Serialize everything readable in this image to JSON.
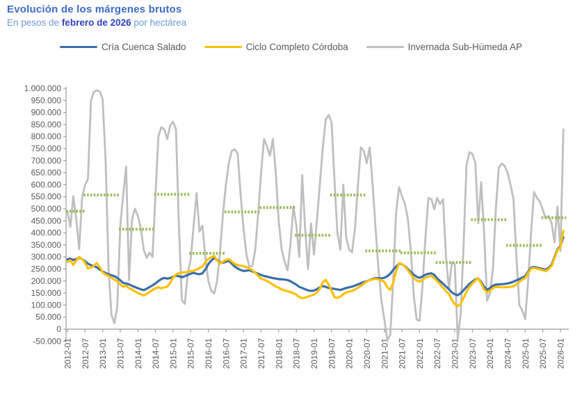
{
  "header": {
    "title": "Evolución de los márgenes brutos",
    "subtitle_prefix": "En pesos de ",
    "subtitle_bold": "febrero de 2026",
    "subtitle_suffix": " por hectárea"
  },
  "legend": {
    "items": [
      {
        "label": "Cría Cuenca Salado",
        "color": "#3A6EA8"
      },
      {
        "label": "Ciclo Completo Córdoba",
        "color": "#FFC000"
      },
      {
        "label": "Invernada Sub-Húmeda AP",
        "color": "#BFBFBF"
      }
    ]
  },
  "colors": {
    "title_blue": "#3B6CC0",
    "subtitle_blue": "#6E9CD4",
    "subtitle_bold_blue": "#2F3FC0",
    "axis_text": "#595959",
    "axis_line": "#9B9B9B",
    "series_cria": "#3A6EA8",
    "series_ciclo": "#FFC000",
    "series_invernada": "#BFBFBF",
    "annual_segments_green": "#9BBB59"
  },
  "chart_data": {
    "type": "line",
    "title": "Evolución de los márgenes brutos",
    "subtitle": "En pesos de febrero de 2026 por hectárea",
    "x_start": "2012-01",
    "x_end": "2026-02",
    "frequency": "monthly",
    "ylim": [
      -50000,
      1000000
    ],
    "y_tick_step": 50000,
    "y_tick_format": "dot-thousands",
    "grid": false,
    "legend_position": "top",
    "x_tick_labels": [
      "2012-01",
      "2012-07",
      "2013-01",
      "2013-07",
      "2014-01",
      "2014-07",
      "2015-01",
      "2015-07",
      "2016-01",
      "2016-07",
      "2017-01",
      "2017-07",
      "2018-01",
      "2018-07",
      "2019-01",
      "2019-07",
      "2020-01",
      "2020-07",
      "2021-01",
      "2021-07",
      "2022-01",
      "2022-07",
      "2023-01",
      "2023-07",
      "2024-01",
      "2024-07",
      "2025-01",
      "2025-07",
      "2026-01"
    ],
    "series": [
      {
        "name": "Cría Cuenca Salado",
        "color": "#3A6EA8",
        "values_note": "approximate monthly values read from chart, pesos/ha",
        "values": [
          290000,
          293000,
          287000,
          291000,
          296000,
          291000,
          282000,
          272000,
          266000,
          262000,
          257000,
          247000,
          240000,
          233000,
          228000,
          224000,
          220000,
          213000,
          203000,
          192000,
          190000,
          186000,
          180000,
          175000,
          170000,
          166000,
          162000,
          168000,
          175000,
          182000,
          190000,
          200000,
          208000,
          213000,
          210000,
          212000,
          218000,
          222000,
          220000,
          216000,
          220000,
          226000,
          230000,
          234000,
          230000,
          228000,
          232000,
          248000,
          270000,
          285000,
          296000,
          288000,
          278000,
          276000,
          280000,
          284000,
          272000,
          260000,
          252000,
          246000,
          242000,
          243000,
          245000,
          240000,
          235000,
          230000,
          225000,
          221000,
          218000,
          215000,
          212000,
          210000,
          208000,
          207000,
          206000,
          204000,
          199000,
          192000,
          185000,
          176000,
          171000,
          166000,
          161000,
          159000,
          160000,
          166000,
          174000,
          179000,
          176000,
          171000,
          169000,
          167000,
          165000,
          163000,
          167000,
          171000,
          174000,
          177000,
          181000,
          186000,
          191000,
          196000,
          198000,
          204000,
          209000,
          212000,
          212000,
          211000,
          214000,
          220000,
          230000,
          246000,
          260000,
          272000,
          270000,
          262000,
          250000,
          238000,
          226000,
          218000,
          213000,
          219000,
          226000,
          230000,
          232000,
          226000,
          211000,
          200000,
          189000,
          177000,
          166000,
          153000,
          145000,
          141000,
          149000,
          162000,
          175000,
          188000,
          198000,
          206000,
          211000,
          196000,
          176000,
          163000,
          171000,
          181000,
          185000,
          186000,
          187000,
          188000,
          190000,
          193000,
          197000,
          203000,
          208000,
          214000,
          220000,
          238000,
          256000,
          258000,
          256000,
          253000,
          250000,
          247000,
          255000,
          268000,
          300000,
          332000,
          345000,
          382000
        ]
      },
      {
        "name": "Ciclo Completo Córdoba",
        "color": "#FFC000",
        "values_note": "approximate monthly values read from chart, pesos/ha",
        "values": [
          281000,
          286000,
          267000,
          286000,
          299000,
          291000,
          276000,
          252000,
          256000,
          264000,
          274000,
          258000,
          236000,
          227000,
          221000,
          214000,
          206000,
          199000,
          186000,
          177000,
          181000,
          170000,
          165000,
          157000,
          150000,
          145000,
          140000,
          147000,
          155000,
          163000,
          170000,
          174000,
          170000,
          173000,
          177000,
          192000,
          215000,
          227000,
          233000,
          235000,
          236000,
          238000,
          241000,
          243000,
          248000,
          254000,
          260000,
          278000,
          292000,
          299000,
          304000,
          286000,
          272000,
          280000,
          288000,
          291000,
          281000,
          271000,
          266000,
          263000,
          262000,
          258000,
          252000,
          245000,
          234000,
          222000,
          210000,
          206000,
          200000,
          193000,
          185000,
          178000,
          172000,
          165000,
          161000,
          158000,
          154000,
          149000,
          144000,
          133000,
          129000,
          131000,
          135000,
          140000,
          144000,
          152000,
          168000,
          194000,
          205000,
          185000,
          160000,
          133000,
          130000,
          135000,
          146000,
          152000,
          156000,
          159000,
          165000,
          172000,
          180000,
          190000,
          197000,
          203000,
          207000,
          209000,
          207000,
          203000,
          196000,
          174000,
          164000,
          192000,
          240000,
          274000,
          271000,
          261000,
          245000,
          229000,
          212000,
          203000,
          197000,
          205000,
          214000,
          218000,
          221000,
          212000,
          199000,
          187000,
          172000,
          158000,
          147000,
          122000,
          104000,
          95000,
          106000,
          130000,
          155000,
          176000,
          190000,
          202000,
          211000,
          190000,
          165000,
          153000,
          160000,
          171000,
          175000,
          175000,
          174000,
          174000,
          175000,
          176000,
          178000,
          186000,
          196000,
          206000,
          212000,
          232000,
          252000,
          254000,
          252000,
          248000,
          245000,
          241000,
          250000,
          262000,
          295000,
          328000,
          341000,
          408000
        ]
      },
      {
        "name": "Invernada Sub-Húmeda AP",
        "color": "#BFBFBF",
        "values_note": "approximate monthly values read from chart, pesos/ha",
        "values": [
          490000,
          425000,
          552000,
          458000,
          332000,
          548000,
          598000,
          625000,
          950000,
          985000,
          992000,
          988000,
          955000,
          700000,
          255000,
          60000,
          25000,
          95000,
          430000,
          560000,
          675000,
          205000,
          455000,
          500000,
          470000,
          420000,
          330000,
          296000,
          318000,
          300000,
          560000,
          800000,
          838000,
          830000,
          790000,
          845000,
          862000,
          830000,
          420000,
          120000,
          105000,
          230000,
          290000,
          430000,
          565000,
          405000,
          430000,
          300000,
          200000,
          160000,
          148000,
          200000,
          320000,
          480000,
          600000,
          690000,
          740000,
          747000,
          730000,
          560000,
          420000,
          310000,
          260000,
          262000,
          330000,
          480000,
          650000,
          790000,
          760000,
          720000,
          790000,
          650000,
          450000,
          330000,
          280000,
          245000,
          350000,
          510000,
          430000,
          300000,
          640000,
          420000,
          250000,
          440000,
          310000,
          450000,
          600000,
          750000,
          870000,
          890000,
          860000,
          620000,
          400000,
          330000,
          600000,
          380000,
          330000,
          320000,
          420000,
          600000,
          755000,
          740000,
          690000,
          755000,
          600000,
          420000,
          250000,
          120000,
          40000,
          -45000,
          -25000,
          200000,
          480000,
          590000,
          552000,
          520000,
          460000,
          330000,
          140000,
          40000,
          35000,
          180000,
          380000,
          545000,
          540000,
          498000,
          545000,
          520000,
          540000,
          300000,
          168000,
          276000,
          270000,
          -40000,
          60000,
          350000,
          680000,
          735000,
          728000,
          690000,
          440000,
          610000,
          400000,
          118000,
          150000,
          250000,
          500000,
          670000,
          688000,
          678000,
          650000,
          600000,
          541000,
          300000,
          100000,
          79000,
          41000,
          200000,
          400000,
          570000,
          545000,
          530000,
          495000,
          460000,
          470000,
          440000,
          360000,
          510000,
          325000,
          830000
        ]
      }
    ],
    "annual_average_segments": {
      "color": "#9BBB59",
      "style": "dashed",
      "segments": [
        {
          "start": "2012-01",
          "end": "2012-06",
          "value": 490000
        },
        {
          "start": "2012-07",
          "end": "2013-06",
          "value": 557000
        },
        {
          "start": "2013-07",
          "end": "2014-06",
          "value": 415000
        },
        {
          "start": "2014-07",
          "end": "2015-06",
          "value": 560000
        },
        {
          "start": "2015-07",
          "end": "2016-06",
          "value": 315000
        },
        {
          "start": "2016-07",
          "end": "2017-06",
          "value": 487000
        },
        {
          "start": "2017-07",
          "end": "2018-06",
          "value": 505000
        },
        {
          "start": "2018-07",
          "end": "2019-06",
          "value": 390000
        },
        {
          "start": "2019-07",
          "end": "2020-06",
          "value": 557000
        },
        {
          "start": "2020-07",
          "end": "2021-06",
          "value": 325000
        },
        {
          "start": "2021-07",
          "end": "2022-06",
          "value": 317000
        },
        {
          "start": "2022-07",
          "end": "2023-06",
          "value": 277000
        },
        {
          "start": "2023-07",
          "end": "2024-06",
          "value": 455000
        },
        {
          "start": "2024-07",
          "end": "2025-06",
          "value": 348000
        },
        {
          "start": "2025-07",
          "end": "2026-02",
          "value": 463000
        }
      ]
    }
  }
}
